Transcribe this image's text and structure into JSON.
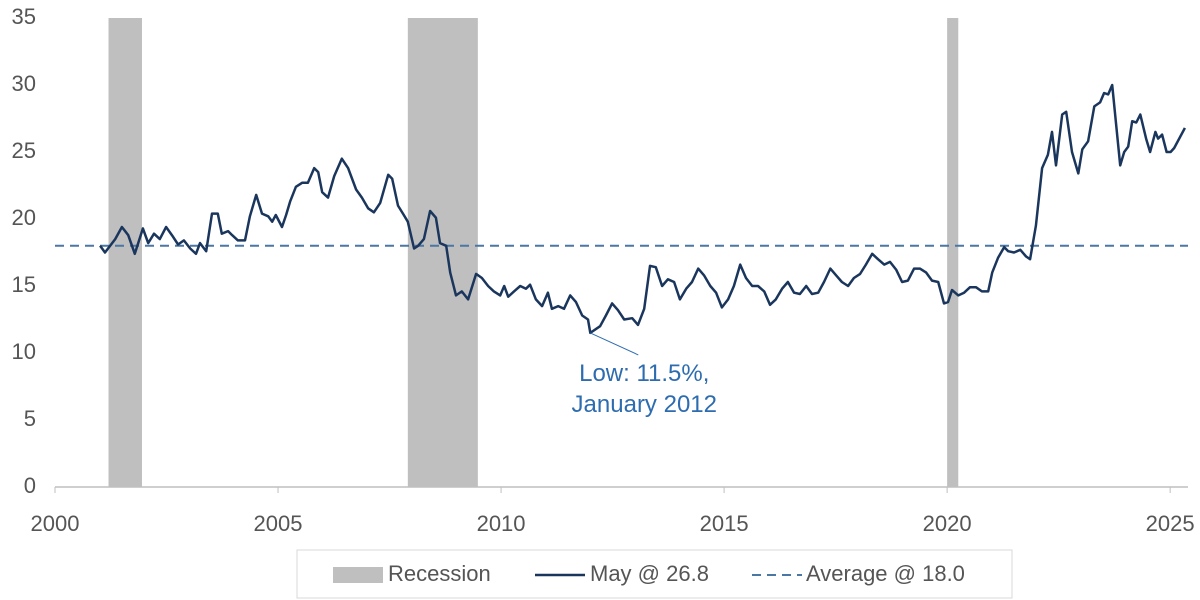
{
  "chart_data": {
    "type": "line",
    "xlim": [
      2000,
      2025.4
    ],
    "ylim": [
      0,
      35
    ],
    "xticks": [
      2000,
      2005,
      2010,
      2015,
      2020,
      2025
    ],
    "yticks": [
      0,
      5,
      10,
      15,
      20,
      25,
      30,
      35
    ],
    "x": [
      2001.01,
      2001.12,
      2001.35,
      2001.5,
      2001.64,
      2001.79,
      2001.97,
      2002.09,
      2002.22,
      2002.35,
      2002.49,
      2002.62,
      2002.76,
      2002.89,
      2003.03,
      2003.16,
      2003.25,
      2003.39,
      2003.52,
      2003.65,
      2003.74,
      2003.88,
      2003.97,
      2004.1,
      2004.26,
      2004.37,
      2004.51,
      2004.64,
      2004.78,
      2004.87,
      2004.95,
      2005.09,
      2005.18,
      2005.27,
      2005.4,
      2005.54,
      2005.67,
      2005.81,
      2005.9,
      2005.99,
      2006.12,
      2006.26,
      2006.43,
      2006.57,
      2006.75,
      2006.88,
      2007.02,
      2007.15,
      2007.29,
      2007.47,
      2007.56,
      2007.69,
      2007.82,
      2007.91,
      2008.05,
      2008.14,
      2008.27,
      2008.41,
      2008.54,
      2008.63,
      2008.77,
      2008.86,
      2008.99,
      2009.12,
      2009.26,
      2009.44,
      2009.57,
      2009.71,
      2009.84,
      2009.98,
      2010.07,
      2010.16,
      2010.29,
      2010.43,
      2010.56,
      2010.65,
      2010.78,
      2010.92,
      2011.05,
      2011.14,
      2011.28,
      2011.41,
      2011.55,
      2011.68,
      2011.82,
      2011.95,
      2012.0,
      2012.22,
      2012.35,
      2012.49,
      2012.62,
      2012.76,
      2012.94,
      2013.07,
      2013.21,
      2013.34,
      2013.47,
      2013.61,
      2013.74,
      2013.88,
      2014.01,
      2014.15,
      2014.28,
      2014.42,
      2014.55,
      2014.69,
      2014.82,
      2014.95,
      2015.09,
      2015.22,
      2015.36,
      2015.49,
      2015.63,
      2015.76,
      2015.9,
      2016.03,
      2016.16,
      2016.3,
      2016.43,
      2016.57,
      2016.7,
      2016.84,
      2016.97,
      2017.11,
      2017.24,
      2017.38,
      2017.51,
      2017.64,
      2017.78,
      2017.91,
      2018.05,
      2018.18,
      2018.32,
      2018.45,
      2018.59,
      2018.72,
      2018.86,
      2018.99,
      2019.12,
      2019.26,
      2019.39,
      2019.53,
      2019.66,
      2019.8,
      2019.93,
      2020.02,
      2020.11,
      2020.25,
      2020.38,
      2020.51,
      2020.65,
      2020.78,
      2020.92,
      2021.01,
      2021.14,
      2021.28,
      2021.37,
      2021.5,
      2021.64,
      2021.77,
      2021.86,
      2021.99,
      2022.13,
      2022.26,
      2022.35,
      2022.44,
      2022.58,
      2022.67,
      2022.8,
      2022.94,
      2023.03,
      2023.16,
      2023.3,
      2023.43,
      2023.52,
      2023.61,
      2023.7,
      2023.79,
      2023.88,
      2023.97,
      2024.06,
      2024.15,
      2024.24,
      2024.33,
      2024.46,
      2024.55,
      2024.67,
      2024.73,
      2024.82,
      2024.92,
      2025.01,
      2025.09,
      2025.33
    ],
    "series": [
      {
        "name": "May @ 26.8",
        "color": "#1b365d",
        "values": [
          18.0,
          17.5,
          18.5,
          19.4,
          18.8,
          17.4,
          19.3,
          18.2,
          18.9,
          18.5,
          19.4,
          18.8,
          18.1,
          18.4,
          17.8,
          17.4,
          18.2,
          17.6,
          20.4,
          20.4,
          18.9,
          19.1,
          18.8,
          18.4,
          18.4,
          20.2,
          21.8,
          20.4,
          20.2,
          19.8,
          20.3,
          19.4,
          20.3,
          21.3,
          22.4,
          22.7,
          22.7,
          23.8,
          23.5,
          22.0,
          21.6,
          23.2,
          24.5,
          23.8,
          22.2,
          21.6,
          20.8,
          20.5,
          21.2,
          23.3,
          23.0,
          21.0,
          20.3,
          19.8,
          17.8,
          18.0,
          18.5,
          20.6,
          20.1,
          18.2,
          18.0,
          16.0,
          14.3,
          14.6,
          14.0,
          15.9,
          15.6,
          15.0,
          14.6,
          14.3,
          15.0,
          14.2,
          14.6,
          15.0,
          14.8,
          15.1,
          14.0,
          13.5,
          14.5,
          13.3,
          13.5,
          13.3,
          14.3,
          13.8,
          12.8,
          12.5,
          11.5,
          12.0,
          12.8,
          13.7,
          13.2,
          12.5,
          12.6,
          12.1,
          13.3,
          16.5,
          16.4,
          15.0,
          15.5,
          15.3,
          14.0,
          14.8,
          15.3,
          16.3,
          15.8,
          15.0,
          14.5,
          13.4,
          14.0,
          15.0,
          16.6,
          15.6,
          15.0,
          15.0,
          14.6,
          13.6,
          14.0,
          14.8,
          15.3,
          14.5,
          14.4,
          15.0,
          14.4,
          14.5,
          15.3,
          16.3,
          15.8,
          15.3,
          15.0,
          15.6,
          15.9,
          16.6,
          17.4,
          17.0,
          16.6,
          16.8,
          16.2,
          15.3,
          15.4,
          16.3,
          16.3,
          16.0,
          15.4,
          15.3,
          13.7,
          13.8,
          14.7,
          14.3,
          14.5,
          14.9,
          14.9,
          14.6,
          14.6,
          16.0,
          17.1,
          17.9,
          17.6,
          17.5,
          17.7,
          17.2,
          17.0,
          19.5,
          23.8,
          24.8,
          26.5,
          24.0,
          27.8,
          28.0,
          25.0,
          23.4,
          25.2,
          25.8,
          28.4,
          28.7,
          29.4,
          29.3,
          30.0,
          27.0,
          24.0,
          25.0,
          25.4,
          27.3,
          27.2,
          27.8,
          26.0,
          25.0,
          26.5,
          26.0,
          26.3,
          25.0,
          25.0,
          25.3,
          26.8
        ]
      }
    ],
    "recessions": {
      "name": "Recession",
      "color": "#bfbfbf",
      "ranges": [
        [
          2001.2,
          2001.95
        ],
        [
          2007.91,
          2009.48
        ],
        [
          2020.0,
          2020.25
        ]
      ]
    },
    "average": {
      "name": "Average @ 18.0",
      "value": 18.0,
      "color": "#4a77a4"
    },
    "annotation": {
      "lines": [
        "Low: 11.5%,",
        "January 2012"
      ],
      "x": 2012.0,
      "y": 11.5,
      "color": "#2e6cb0"
    }
  }
}
